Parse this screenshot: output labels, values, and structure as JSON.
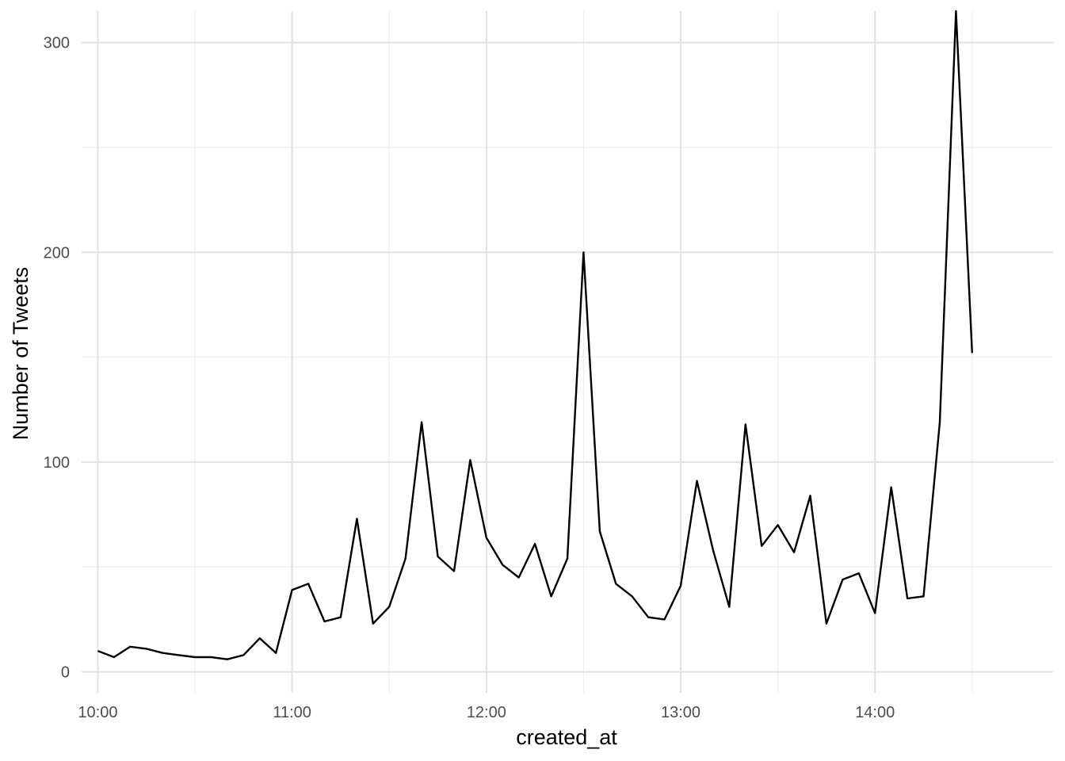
{
  "chart_data": {
    "type": "line",
    "title": "",
    "xlabel": "created_at",
    "ylabel": "Number of Tweets",
    "x_unit": "time of day (HH:MM)",
    "xlim": [
      "09:55",
      "14:55"
    ],
    "ylim": [
      -10,
      315
    ],
    "x_ticks": [
      {
        "value": "10:00",
        "label": "10:00"
      },
      {
        "value": "11:00",
        "label": "11:00"
      },
      {
        "value": "12:00",
        "label": "12:00"
      },
      {
        "value": "13:00",
        "label": "13:00"
      },
      {
        "value": "14:00",
        "label": "14:00"
      }
    ],
    "x_minor_ticks": [
      "10:30",
      "11:30",
      "12:30",
      "13:30",
      "14:30"
    ],
    "y_ticks": [
      0,
      100,
      200,
      300
    ],
    "y_minor_ticks": [
      50,
      150,
      250
    ],
    "grid": true,
    "legend": "none",
    "line_color": "#000000",
    "x": [
      "10:00",
      "10:05",
      "10:10",
      "10:15",
      "10:20",
      "10:25",
      "10:30",
      "10:35",
      "10:40",
      "10:45",
      "10:50",
      "10:55",
      "11:00",
      "11:05",
      "11:10",
      "11:15",
      "11:20",
      "11:25",
      "11:30",
      "11:35",
      "11:40",
      "11:45",
      "11:50",
      "11:55",
      "12:00",
      "12:05",
      "12:10",
      "12:15",
      "12:20",
      "12:25",
      "12:30",
      "12:35",
      "12:40",
      "12:45",
      "12:50",
      "12:55",
      "13:00",
      "13:05",
      "13:10",
      "13:15",
      "13:20",
      "13:25",
      "13:30",
      "13:35",
      "13:40",
      "13:45",
      "13:50",
      "13:55",
      "14:00",
      "14:05",
      "14:10",
      "14:15",
      "14:20",
      "14:25",
      "14:30"
    ],
    "y": [
      10,
      7,
      12,
      11,
      9,
      8,
      7,
      7,
      6,
      8,
      16,
      9,
      39,
      42,
      24,
      26,
      73,
      23,
      31,
      54,
      119,
      55,
      48,
      101,
      64,
      51,
      45,
      61,
      36,
      54,
      200,
      67,
      42,
      36,
      26,
      25,
      41,
      91,
      58,
      31,
      118,
      60,
      70,
      57,
      84,
      23,
      44,
      47,
      28,
      88,
      35,
      36,
      119,
      315,
      152
    ]
  }
}
